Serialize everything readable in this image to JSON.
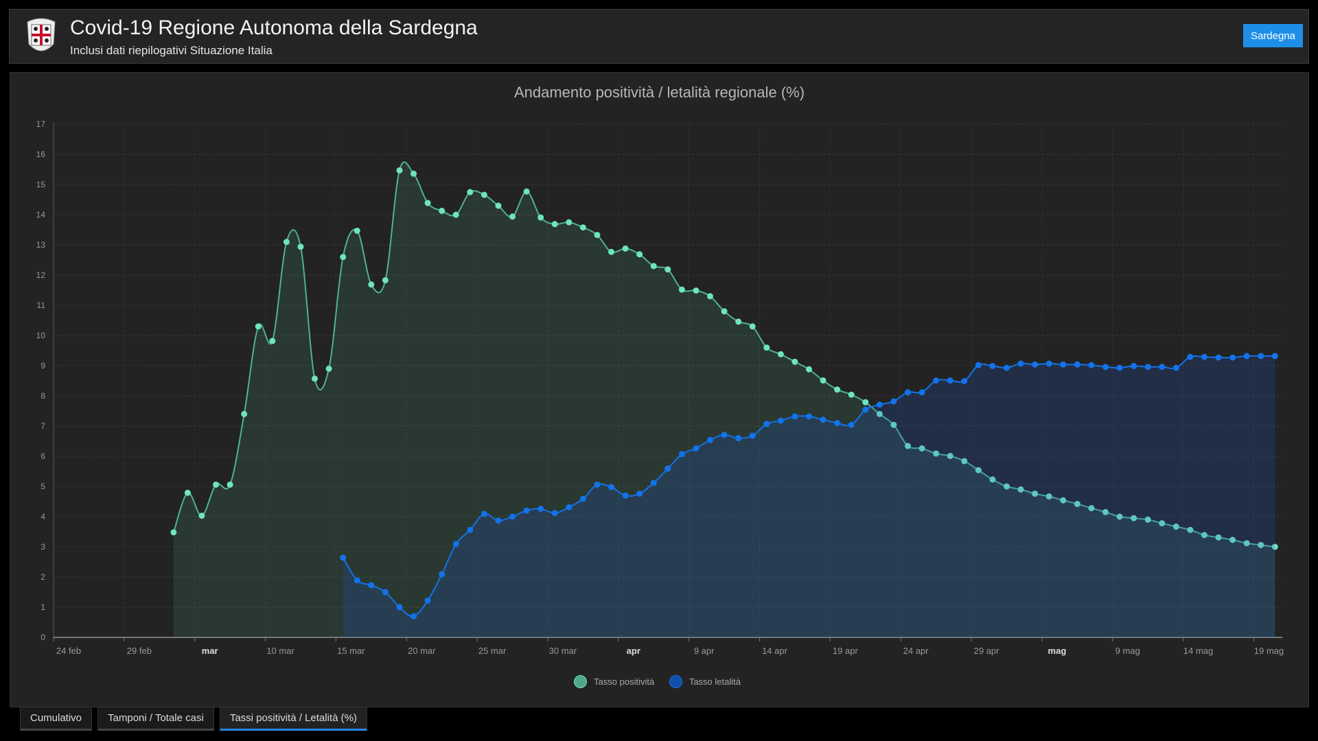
{
  "header": {
    "title": "Covid-19 Regione Autonoma della Sardegna",
    "subtitle": "Inclusi dati riepilogativi Situazione Italia",
    "region_button": "Sardegna",
    "logo": "sardinia-coat-of-arms"
  },
  "colors": {
    "accent": "#1e8fe8",
    "positivita": "#6fe3c2",
    "positivita_line": "#4fb391",
    "letalita": "#1273ea"
  },
  "tabs": [
    {
      "label": "Cumulativo",
      "active": false
    },
    {
      "label": "Tamponi / Totale casi",
      "active": false
    },
    {
      "label": "Tassi positività / Letalità (%)",
      "active": true
    }
  ],
  "chart_data": {
    "type": "area",
    "title": "Andamento positività / letalità regionale (%)",
    "ylim": [
      0,
      17
    ],
    "yticks": [
      0,
      1,
      2,
      3,
      4,
      5,
      6,
      7,
      8,
      9,
      10,
      11,
      12,
      13,
      14,
      15,
      16,
      17
    ],
    "xticks": [
      "24 feb",
      "29 feb",
      "mar",
      "10 mar",
      "15 mar",
      "20 mar",
      "25 mar",
      "30 mar",
      "apr",
      "9 apr",
      "14 apr",
      "19 apr",
      "24 apr",
      "29 apr",
      "mag",
      "9 mag",
      "14 mag",
      "19 mag"
    ],
    "grid": true,
    "legend": "bottom",
    "series": [
      {
        "name": "Tasso positività",
        "x_start": "3 mar",
        "x_end": "20 mag",
        "values": [
          3.48,
          4.79,
          4.03,
          5.06,
          5.06,
          7.4,
          10.3,
          9.82,
          13.1,
          12.94,
          8.57,
          8.9,
          12.6,
          13.47,
          11.69,
          11.83,
          15.47,
          15.36,
          14.39,
          14.13,
          14.0,
          14.75,
          14.66,
          14.3,
          13.94,
          14.77,
          13.91,
          13.69,
          13.75,
          13.58,
          13.33,
          12.77,
          12.88,
          12.69,
          12.3,
          12.19,
          11.52,
          11.49,
          11.3,
          10.8,
          10.46,
          10.3,
          9.6,
          9.38,
          9.13,
          8.88,
          8.51,
          8.21,
          8.04,
          7.79,
          7.4,
          7.04,
          6.34,
          6.26,
          6.09,
          6.01,
          5.84,
          5.54,
          5.23,
          5.0,
          4.9,
          4.76,
          4.67,
          4.54,
          4.42,
          4.28,
          4.15,
          4.0,
          3.95,
          3.9,
          3.78,
          3.67,
          3.56,
          3.39,
          3.31,
          3.23,
          3.12,
          3.06,
          3.0
        ]
      },
      {
        "name": "Tasso letalità",
        "x_start": "15 mar",
        "x_end": "20 mag",
        "values": [
          2.64,
          1.89,
          1.73,
          1.5,
          1.0,
          0.7,
          1.22,
          2.09,
          3.09,
          3.56,
          4.09,
          3.87,
          4.0,
          4.2,
          4.26,
          4.12,
          4.31,
          4.59,
          5.06,
          4.98,
          4.7,
          4.76,
          5.12,
          5.59,
          6.07,
          6.26,
          6.54,
          6.71,
          6.6,
          6.68,
          7.07,
          7.18,
          7.32,
          7.32,
          7.21,
          7.1,
          7.04,
          7.54,
          7.71,
          7.82,
          8.12,
          8.12,
          8.51,
          8.51,
          8.49,
          9.02,
          8.99,
          8.93,
          9.07,
          9.04,
          9.07,
          9.04,
          9.04,
          9.02,
          8.96,
          8.93,
          8.99,
          8.96,
          8.96,
          8.93,
          9.29,
          9.29,
          9.27,
          9.27,
          9.32,
          9.32,
          9.32
        ]
      }
    ]
  }
}
